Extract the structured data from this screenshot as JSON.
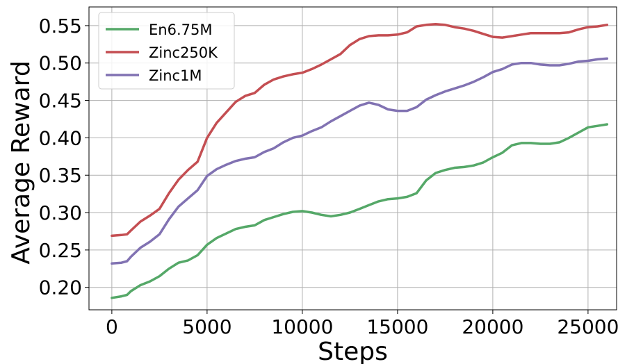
{
  "chart_data": {
    "type": "line",
    "title": "",
    "xlabel": "Steps",
    "ylabel": "Average Reward",
    "xlim": [
      -1200,
      26500
    ],
    "ylim": [
      0.17,
      0.575
    ],
    "xticks": [
      0,
      5000,
      10000,
      15000,
      20000,
      25000
    ],
    "xtick_labels": [
      "0",
      "5000",
      "10000",
      "15000",
      "20000",
      "25000"
    ],
    "yticks": [
      0.2,
      0.25,
      0.3,
      0.35,
      0.4,
      0.45,
      0.5,
      0.55
    ],
    "ytick_labels": [
      "0.20",
      "0.25",
      "0.30",
      "0.35",
      "0.40",
      "0.45",
      "0.50",
      "0.55"
    ],
    "grid": true,
    "legend_position": "top-left",
    "series": [
      {
        "name": "En6.75M",
        "color": "#55a868",
        "points": [
          [
            0,
            0.186
          ],
          [
            500,
            0.188
          ],
          [
            800,
            0.19
          ],
          [
            1000,
            0.195
          ],
          [
            1500,
            0.203
          ],
          [
            2000,
            0.208
          ],
          [
            2500,
            0.215
          ],
          [
            3000,
            0.225
          ],
          [
            3500,
            0.233
          ],
          [
            4000,
            0.236
          ],
          [
            4500,
            0.243
          ],
          [
            5000,
            0.257
          ],
          [
            5500,
            0.266
          ],
          [
            6000,
            0.272
          ],
          [
            6500,
            0.278
          ],
          [
            7000,
            0.281
          ],
          [
            7500,
            0.283
          ],
          [
            8000,
            0.29
          ],
          [
            8500,
            0.294
          ],
          [
            9000,
            0.298
          ],
          [
            9500,
            0.301
          ],
          [
            10000,
            0.302
          ],
          [
            10500,
            0.3
          ],
          [
            11000,
            0.297
          ],
          [
            11500,
            0.295
          ],
          [
            12000,
            0.297
          ],
          [
            12500,
            0.3
          ],
          [
            13000,
            0.305
          ],
          [
            13500,
            0.31
          ],
          [
            14000,
            0.315
          ],
          [
            14500,
            0.318
          ],
          [
            15000,
            0.319
          ],
          [
            15500,
            0.321
          ],
          [
            16000,
            0.326
          ],
          [
            16500,
            0.343
          ],
          [
            17000,
            0.353
          ],
          [
            17500,
            0.357
          ],
          [
            18000,
            0.36
          ],
          [
            18500,
            0.361
          ],
          [
            19000,
            0.363
          ],
          [
            19500,
            0.367
          ],
          [
            20000,
            0.374
          ],
          [
            20500,
            0.38
          ],
          [
            21000,
            0.39
          ],
          [
            21500,
            0.393
          ],
          [
            22000,
            0.393
          ],
          [
            22500,
            0.392
          ],
          [
            23000,
            0.392
          ],
          [
            23500,
            0.394
          ],
          [
            24000,
            0.4
          ],
          [
            24500,
            0.407
          ],
          [
            25000,
            0.414
          ],
          [
            25500,
            0.416
          ],
          [
            26000,
            0.418
          ]
        ]
      },
      {
        "name": "Zinc250K",
        "color": "#c44e52",
        "points": [
          [
            0,
            0.269
          ],
          [
            500,
            0.27
          ],
          [
            800,
            0.271
          ],
          [
            1000,
            0.276
          ],
          [
            1500,
            0.288
          ],
          [
            2000,
            0.296
          ],
          [
            2500,
            0.305
          ],
          [
            3000,
            0.326
          ],
          [
            3500,
            0.344
          ],
          [
            4000,
            0.357
          ],
          [
            4500,
            0.368
          ],
          [
            5000,
            0.4
          ],
          [
            5500,
            0.42
          ],
          [
            6000,
            0.434
          ],
          [
            6500,
            0.448
          ],
          [
            7000,
            0.456
          ],
          [
            7500,
            0.46
          ],
          [
            8000,
            0.471
          ],
          [
            8500,
            0.478
          ],
          [
            9000,
            0.482
          ],
          [
            9500,
            0.485
          ],
          [
            10000,
            0.487
          ],
          [
            10500,
            0.492
          ],
          [
            11000,
            0.498
          ],
          [
            11500,
            0.505
          ],
          [
            12000,
            0.512
          ],
          [
            12500,
            0.524
          ],
          [
            13000,
            0.532
          ],
          [
            13500,
            0.536
          ],
          [
            14000,
            0.537
          ],
          [
            14500,
            0.537
          ],
          [
            15000,
            0.538
          ],
          [
            15500,
            0.541
          ],
          [
            16000,
            0.549
          ],
          [
            16500,
            0.551
          ],
          [
            17000,
            0.552
          ],
          [
            17500,
            0.551
          ],
          [
            18000,
            0.548
          ],
          [
            18500,
            0.546
          ],
          [
            19000,
            0.543
          ],
          [
            19500,
            0.539
          ],
          [
            20000,
            0.535
          ],
          [
            20500,
            0.534
          ],
          [
            21000,
            0.536
          ],
          [
            21500,
            0.538
          ],
          [
            22000,
            0.54
          ],
          [
            22500,
            0.54
          ],
          [
            23000,
            0.54
          ],
          [
            23500,
            0.54
          ],
          [
            24000,
            0.541
          ],
          [
            24500,
            0.545
          ],
          [
            25000,
            0.548
          ],
          [
            25500,
            0.549
          ],
          [
            26000,
            0.551
          ]
        ]
      },
      {
        "name": "Zinc1M",
        "color": "#8172b2",
        "points": [
          [
            0,
            0.232
          ],
          [
            500,
            0.233
          ],
          [
            800,
            0.235
          ],
          [
            1000,
            0.241
          ],
          [
            1500,
            0.253
          ],
          [
            2000,
            0.261
          ],
          [
            2500,
            0.271
          ],
          [
            3000,
            0.291
          ],
          [
            3500,
            0.308
          ],
          [
            4000,
            0.319
          ],
          [
            4500,
            0.33
          ],
          [
            5000,
            0.349
          ],
          [
            5500,
            0.358
          ],
          [
            6000,
            0.364
          ],
          [
            6500,
            0.369
          ],
          [
            7000,
            0.372
          ],
          [
            7500,
            0.374
          ],
          [
            8000,
            0.381
          ],
          [
            8500,
            0.386
          ],
          [
            9000,
            0.394
          ],
          [
            9500,
            0.4
          ],
          [
            10000,
            0.403
          ],
          [
            10500,
            0.409
          ],
          [
            11000,
            0.414
          ],
          [
            11500,
            0.422
          ],
          [
            12000,
            0.429
          ],
          [
            12500,
            0.436
          ],
          [
            13000,
            0.443
          ],
          [
            13500,
            0.447
          ],
          [
            14000,
            0.444
          ],
          [
            14500,
            0.438
          ],
          [
            15000,
            0.436
          ],
          [
            15500,
            0.436
          ],
          [
            16000,
            0.441
          ],
          [
            16500,
            0.451
          ],
          [
            17000,
            0.457
          ],
          [
            17500,
            0.462
          ],
          [
            18000,
            0.466
          ],
          [
            18500,
            0.47
          ],
          [
            19000,
            0.475
          ],
          [
            19500,
            0.481
          ],
          [
            20000,
            0.488
          ],
          [
            20500,
            0.492
          ],
          [
            21000,
            0.498
          ],
          [
            21500,
            0.5
          ],
          [
            22000,
            0.5
          ],
          [
            22500,
            0.498
          ],
          [
            23000,
            0.497
          ],
          [
            23500,
            0.497
          ],
          [
            24000,
            0.499
          ],
          [
            24500,
            0.502
          ],
          [
            25000,
            0.503
          ],
          [
            25500,
            0.505
          ],
          [
            26000,
            0.506
          ]
        ]
      }
    ]
  }
}
